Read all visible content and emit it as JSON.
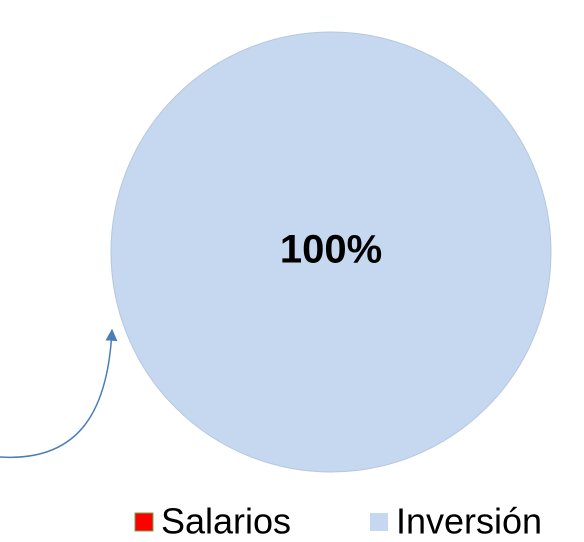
{
  "chart_data": {
    "type": "pie",
    "categories": [
      "Salarios",
      "Inversión"
    ],
    "values": [
      0,
      100
    ],
    "value_labels": [
      null,
      "100%"
    ],
    "colors": [
      "#ff0000",
      "#c6d8ef"
    ],
    "legend": "bottom"
  }
}
